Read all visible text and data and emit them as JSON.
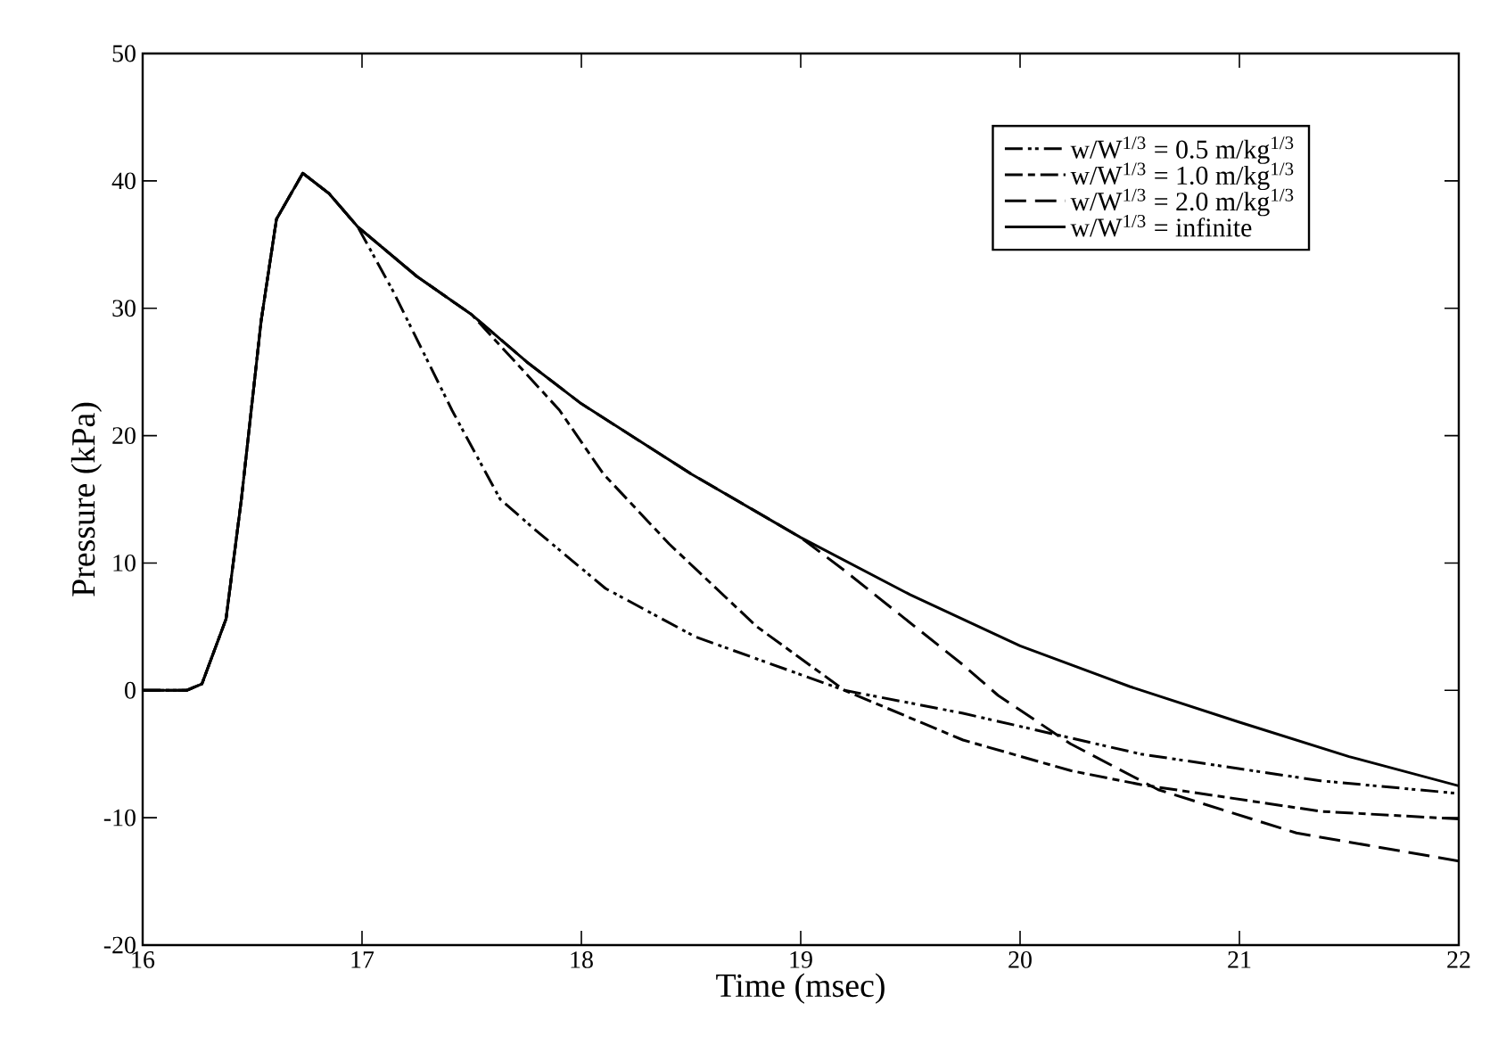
{
  "chart_data": {
    "type": "line",
    "xlabel": "Time (msec)",
    "ylabel": "Pressure (kPa)",
    "xlim": [
      16,
      22
    ],
    "ylim": [
      -20,
      50
    ],
    "xticks": [
      16,
      17,
      18,
      19,
      20,
      21,
      22
    ],
    "yticks": [
      -20,
      -10,
      0,
      10,
      20,
      30,
      40,
      50
    ],
    "grid": false,
    "legend": "top right",
    "marker": "none",
    "series": [
      {
        "name": "w/W$^{1/3}$ = 0.5 m/kg$^{1/3}$",
        "color": "#000000",
        "line_style": "dashdotdotted",
        "x": [
          16,
          16.2,
          16.27,
          16.38,
          16.45,
          16.54,
          16.61,
          16.73,
          16.85,
          16.98,
          17.14,
          17.41,
          17.63,
          17.79,
          18.11,
          18.52,
          19.2,
          19.74,
          20.55,
          21.37,
          22
        ],
        "values": [
          0,
          0,
          0.5,
          5.6,
          15,
          29,
          37,
          40.6,
          39,
          36.4,
          31.4,
          22,
          15,
          12.6,
          8,
          4.2,
          0,
          -1.8,
          -5,
          -7.1,
          -8.1
        ]
      },
      {
        "name": "w/W$^{1/3}$ = 1.0 m/kg$^{1/3}$",
        "color": "#000000",
        "line_style": "dashdotted",
        "x": [
          16,
          16.2,
          16.27,
          16.38,
          16.45,
          16.54,
          16.61,
          16.73,
          16.85,
          16.98,
          17.25,
          17.5,
          17.73,
          17.9,
          18.1,
          18.4,
          18.8,
          19.2,
          19.74,
          20.23,
          20.55,
          21.37,
          22
        ],
        "values": [
          0,
          0,
          0.5,
          5.6,
          15,
          29,
          37,
          40.6,
          39,
          36.4,
          32.5,
          29.5,
          25.2,
          22,
          17,
          11.5,
          5,
          0,
          -3.9,
          -6.3,
          -7.4,
          -9.5,
          -10.1
        ]
      },
      {
        "name": "w/W$^{1/3}$ = 2.0 m/kg$^{1/3}$",
        "color": "#000000",
        "line_style": "dashed",
        "x": [
          16,
          16.2,
          16.27,
          16.38,
          16.45,
          16.54,
          16.61,
          16.73,
          16.85,
          16.98,
          17.25,
          17.5,
          17.75,
          18,
          18.5,
          19,
          19.2,
          19.74,
          19.9,
          20.23,
          20.63,
          21.26,
          22
        ],
        "values": [
          0,
          0,
          0.5,
          5.6,
          15,
          29,
          37,
          40.6,
          39,
          36.4,
          32.5,
          29.5,
          25.8,
          22.5,
          17,
          12,
          9.4,
          2,
          -0.4,
          -4.2,
          -7.8,
          -11.2,
          -13.4
        ]
      },
      {
        "name": "w/W$^{1/3}$ = infinite",
        "color": "#000000",
        "line_style": "solid",
        "x": [
          16,
          16.2,
          16.27,
          16.38,
          16.45,
          16.54,
          16.61,
          16.73,
          16.85,
          16.98,
          17.25,
          17.5,
          17.75,
          18,
          18.5,
          19,
          19.5,
          20,
          20.5,
          21,
          21.5,
          22
        ],
        "values": [
          0,
          0,
          0.5,
          5.6,
          15,
          29,
          37,
          40.6,
          39,
          36.4,
          32.5,
          29.5,
          25.8,
          22.5,
          17,
          12,
          7.5,
          3.5,
          0.3,
          -2.5,
          -5.2,
          -7.5
        ]
      }
    ]
  }
}
